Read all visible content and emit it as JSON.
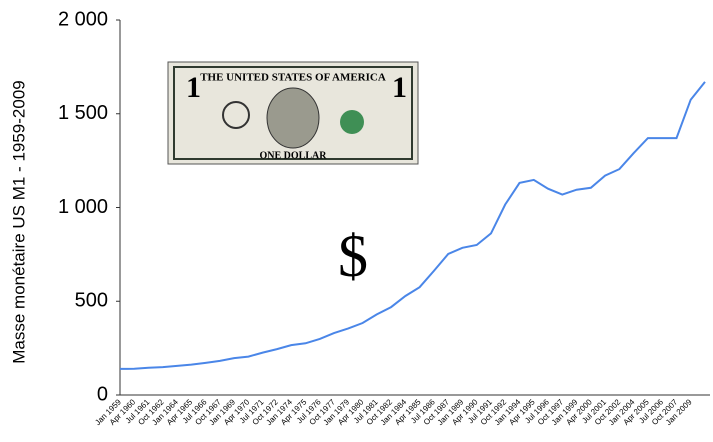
{
  "chart_data": {
    "type": "line",
    "y_label": "Masse monétaire US M1 - 1959-2009",
    "annotation": "$",
    "image_texts": [
      "THE UNITED STATES OF AMERICA",
      "ONE DOLLAR"
    ],
    "categories": [
      "Jan 1959",
      "Apr 1960",
      "Jul 1961",
      "Oct 1962",
      "Jan 1964",
      "Apr 1965",
      "Jul 1966",
      "Oct 1967",
      "Jan 1969",
      "Apr 1970",
      "Jul 1971",
      "Oct 1972",
      "Jan 1974",
      "Apr 1975",
      "Jul 1976",
      "Oct 1977",
      "Jan 1979",
      "Apr 1980",
      "Jul 1981",
      "Oct 1982",
      "Jan 1984",
      "Apr 1985",
      "Jul 1986",
      "Oct 1987",
      "Jan 1989",
      "Apr 1990",
      "Jul 1991",
      "Oct 1992",
      "Jan 1994",
      "Apr 1995",
      "Jul 1996",
      "Oct 1997",
      "Jan 1999",
      "Apr 2000",
      "Jul 2001",
      "Oct 2002",
      "Jan 2004",
      "Apr 2005",
      "Jul 2006",
      "Oct 2007",
      "Jan 2009",
      null
    ],
    "values": [
      139,
      140,
      145,
      149,
      155,
      162,
      171,
      182,
      197,
      205,
      226,
      245,
      266,
      276,
      299,
      330,
      355,
      384,
      430,
      469,
      528,
      575,
      662,
      752,
      785,
      800,
      862,
      1016,
      1131,
      1147,
      1100,
      1069,
      1095,
      1105,
      1170,
      1205,
      1290,
      1370,
      1370,
      1370,
      1575,
      1670
    ],
    "color": "#4a86e8",
    "ylim": [
      0,
      2000
    ],
    "yticks": [
      0,
      500,
      {
        "value": 1000,
        "label": "1 000"
      },
      {
        "value": 1500,
        "label": "1 500"
      },
      {
        "value": 2000,
        "label": "2 000"
      }
    ]
  }
}
